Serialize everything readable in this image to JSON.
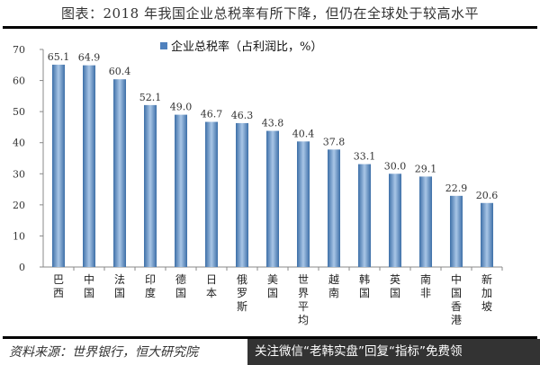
{
  "title": "图表：2018 年我国企业总税率有所下降，但仍在全球处于较高水平",
  "source": "资料来源：世界银行，恒大研究院",
  "watermark": "关注微信“老韩实盘”回复“指标”免费领",
  "chart_data": {
    "type": "bar",
    "categories": [
      "巴西",
      "中国",
      "法国",
      "印度",
      "德国",
      "日本",
      "俄罗斯",
      "美国",
      "世界平均",
      "越南",
      "韩国",
      "英国",
      "南非",
      "中国香港",
      "新加坡"
    ],
    "series": [
      {
        "name": "企业总税率（占利润比，%）",
        "values": [
          65.1,
          64.9,
          60.4,
          52.1,
          49.0,
          46.7,
          46.3,
          43.8,
          40.4,
          37.8,
          33.1,
          30.0,
          29.1,
          22.9,
          20.6
        ]
      }
    ],
    "value_labels": [
      "65.1",
      "64.9",
      "60.4",
      "52.1",
      "49.0",
      "46.7",
      "46.3",
      "43.8",
      "40.4",
      "37.8",
      "33.1",
      "30.0",
      "29.1",
      "22.9",
      "20.6"
    ],
    "ylim": [
      0,
      70
    ],
    "yticks": [
      "0",
      "10",
      "20",
      "30",
      "40",
      "50",
      "60",
      "70"
    ],
    "grid": false,
    "legend": "top-center",
    "bar_color": "#4f81bd"
  }
}
